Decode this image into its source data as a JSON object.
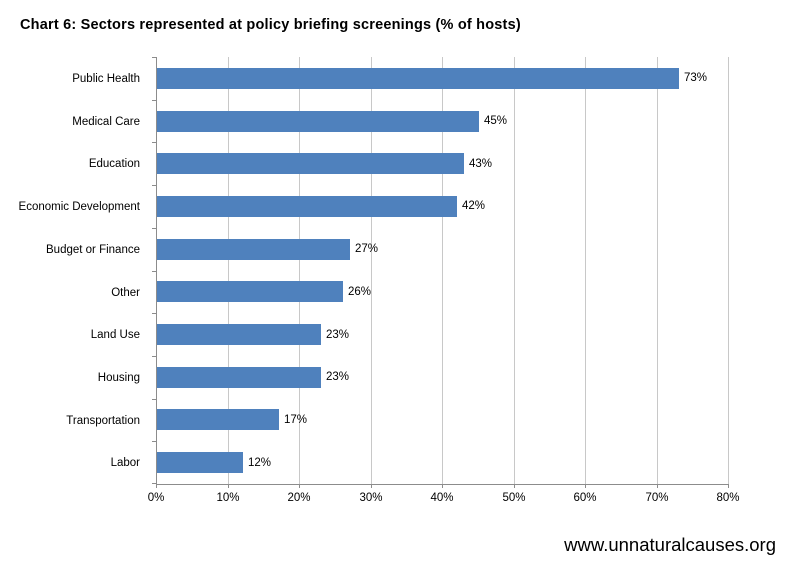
{
  "page": {
    "footer": "www.unnaturalcauses.org"
  },
  "chart_data": {
    "type": "bar",
    "orientation": "horizontal",
    "title": "Chart 6: Sectors represented at policy briefing screenings (% of hosts)",
    "categories": [
      "Public Health",
      "Medical Care",
      "Education",
      "Economic Development",
      "Budget or Finance",
      "Other",
      "Land Use",
      "Housing",
      "Transportation",
      "Labor"
    ],
    "values": [
      73,
      45,
      43,
      42,
      27,
      26,
      23,
      23,
      17,
      12
    ],
    "value_labels": [
      "73%",
      "45%",
      "43%",
      "42%",
      "27%",
      "26%",
      "23%",
      "23%",
      "17%",
      "12%"
    ],
    "xlabel": "",
    "ylabel": "",
    "xlim": [
      0,
      80
    ],
    "x_tick_values": [
      0,
      10,
      20,
      30,
      40,
      50,
      60,
      70,
      80
    ],
    "x_tick_labels": [
      "0%",
      "10%",
      "20%",
      "30%",
      "40%",
      "50%",
      "60%",
      "70%",
      "80%"
    ],
    "grid": "vertical-only",
    "legend": "none",
    "bar_color": "#4F81BD",
    "gridline_color": "#C8C8C8",
    "axis_color": "#8C8C8C",
    "text_color": "#000000"
  }
}
